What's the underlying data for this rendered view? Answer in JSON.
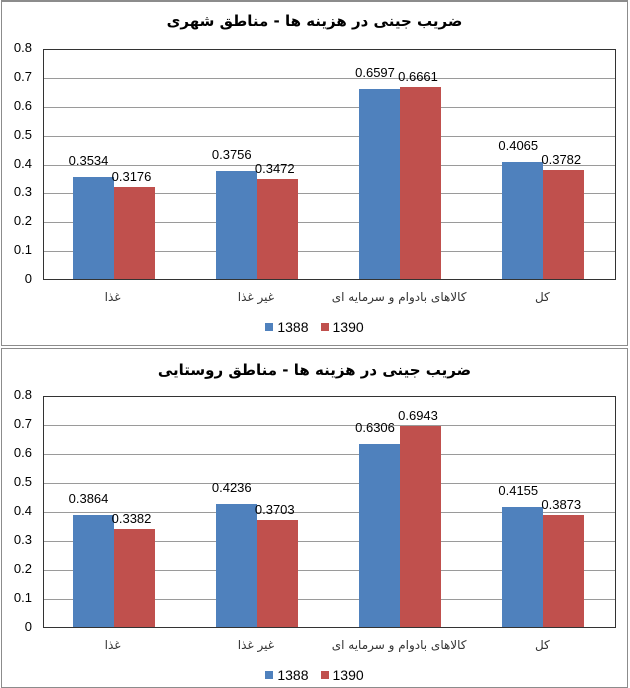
{
  "chart_data": [
    {
      "type": "bar",
      "title": "ضریب جینی در هزینه ها - مناطق شهری",
      "categories": [
        "غذا",
        "غیر غذا",
        "کالاهای بادوام و سرمایه ای",
        "کل"
      ],
      "series": [
        {
          "name": "1388",
          "color": "#4f81bd",
          "values": [
            0.3534,
            0.3756,
            0.6597,
            0.4065
          ]
        },
        {
          "name": "1390",
          "color": "#c0504d",
          "values": [
            0.3176,
            0.3472,
            0.6661,
            0.3782
          ]
        }
      ],
      "ylim": [
        0,
        0.8
      ],
      "yticks": [
        "0",
        "0.1",
        "0.2",
        "0.3",
        "0.4",
        "0.5",
        "0.6",
        "0.7",
        "0.8"
      ],
      "grid": true,
      "legend_position": "bottom",
      "xlabel": "",
      "ylabel": ""
    },
    {
      "type": "bar",
      "title": "ضریب جینی در هزینه ها - مناطق روستایی",
      "categories": [
        "غذا",
        "غیر غذا",
        "کالاهای بادوام و سرمایه ای",
        "کل"
      ],
      "series": [
        {
          "name": "1388",
          "color": "#4f81bd",
          "values": [
            0.3864,
            0.4236,
            0.6306,
            0.4155
          ]
        },
        {
          "name": "1390",
          "color": "#c0504d",
          "values": [
            0.3382,
            0.3703,
            0.6943,
            0.3873
          ]
        }
      ],
      "ylim": [
        0,
        0.8
      ],
      "yticks": [
        "0",
        "0.1",
        "0.2",
        "0.3",
        "0.4",
        "0.5",
        "0.6",
        "0.7",
        "0.8"
      ],
      "grid": true,
      "legend_position": "bottom",
      "xlabel": "",
      "ylabel": ""
    }
  ]
}
